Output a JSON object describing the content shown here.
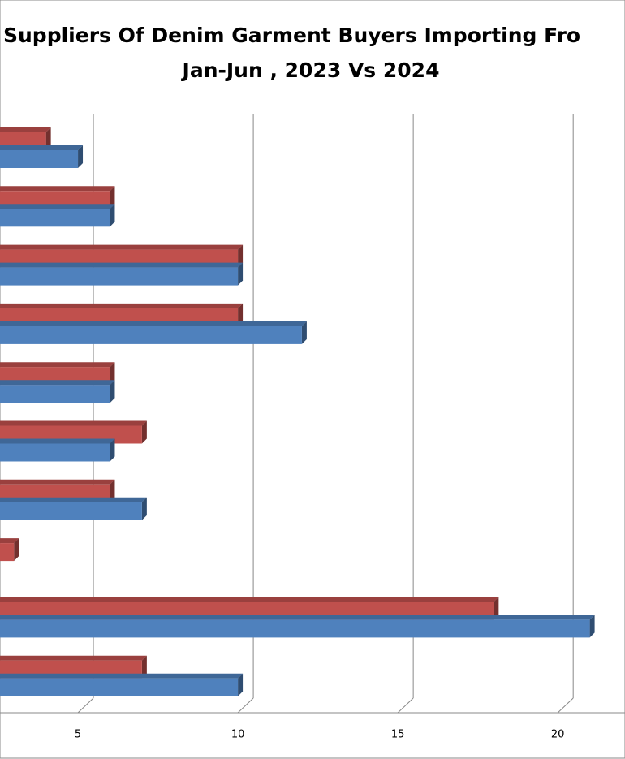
{
  "chart_data": {
    "type": "bar",
    "title": [
      "Suppliers Of Denim Garment Buyers Importing Fro",
      "Jan-Jun , 2023 Vs 2024"
    ],
    "categories": [
      null,
      null,
      null,
      null,
      null,
      null,
      null,
      null,
      null,
      null
    ],
    "series": [
      {
        "color": "#c0504d",
        "values": [
          4,
          6,
          10,
          10,
          6,
          7,
          6,
          3,
          18,
          7
        ]
      },
      {
        "color": "#4f81bd",
        "values": [
          5,
          6,
          10,
          12,
          6,
          6,
          7,
          0,
          21,
          10
        ]
      }
    ],
    "xlim": [
      0,
      22
    ],
    "xticks": [
      5,
      10,
      15,
      20
    ],
    "grid": true,
    "horizontal": true
  }
}
